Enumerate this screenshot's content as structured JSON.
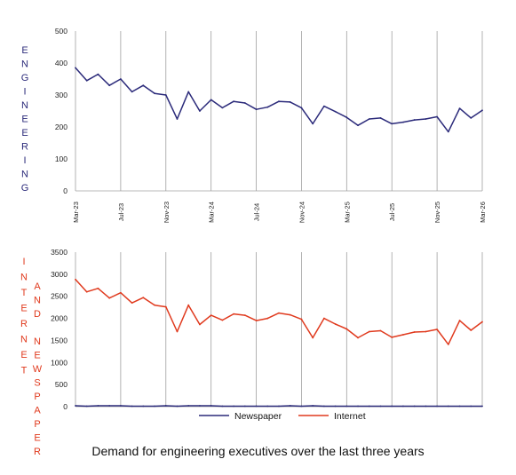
{
  "caption": "Demand for engineering executives over the last three years",
  "colors": {
    "newspaper": "#2b2a7a",
    "internet": "#e03a1e",
    "grid": "#a0a0a0",
    "axis_text": "#222222"
  },
  "chart_data": [
    {
      "type": "line",
      "ylabel": "ENGINEERING",
      "ylabel_color": "#2b2a7a",
      "ylim": [
        0,
        500
      ],
      "yticks": [
        0,
        100,
        200,
        300,
        400,
        500
      ],
      "grid": "vertical lines at every 4th month",
      "x": [
        "Mar-23",
        "Apr-23",
        "May-23",
        "Jun-23",
        "Jul-23",
        "Aug-23",
        "Sep-23",
        "Oct-23",
        "Nov-23",
        "Dec-23",
        "Jan-24",
        "Feb-24",
        "Mar-24",
        "Apr-24",
        "May-24",
        "Jun-24",
        "Jul-24",
        "Aug-24",
        "Sep-24",
        "Oct-24",
        "Nov-24",
        "Dec-24",
        "Jan-25",
        "Feb-25",
        "Mar-25",
        "Apr-25",
        "May-25",
        "Jun-25",
        "Jul-25",
        "Aug-25",
        "Sep-25",
        "Oct-25",
        "Nov-25",
        "Dec-25",
        "Jan-26",
        "Feb-26",
        "Mar-26"
      ],
      "x_tick_labels": [
        "Mar-23",
        "Jul-23",
        "Nov-23",
        "Mar-24",
        "Jul-24",
        "Nov-24",
        "Mar-25",
        "Jul-25",
        "Nov-25",
        "Mar-26"
      ],
      "series": [
        {
          "values": [
            385,
            345,
            365,
            330,
            350,
            310,
            330,
            305,
            300,
            225,
            310,
            250,
            285,
            260,
            280,
            275,
            255,
            262,
            280,
            278,
            260,
            210,
            265,
            248,
            230,
            205,
            225,
            228,
            210,
            215,
            222,
            225,
            232,
            185,
            258,
            228,
            252
          ]
        }
      ]
    },
    {
      "type": "line",
      "ylabel_left": "INTERNET",
      "ylabel_right": "AND NEWSPAPER",
      "ylabel_color": "#e03a1e",
      "ylim": [
        0,
        3500
      ],
      "yticks": [
        0,
        500,
        1000,
        1500,
        2000,
        2500,
        3000,
        3500
      ],
      "grid": "vertical lines at every 4th month",
      "legend": "bottom",
      "x": [
        "Mar-23",
        "Apr-23",
        "May-23",
        "Jun-23",
        "Jul-23",
        "Aug-23",
        "Sep-23",
        "Oct-23",
        "Nov-23",
        "Dec-23",
        "Jan-24",
        "Feb-24",
        "Mar-24",
        "Apr-24",
        "May-24",
        "Jun-24",
        "Jul-24",
        "Aug-24",
        "Sep-24",
        "Oct-24",
        "Nov-24",
        "Dec-24",
        "Jan-25",
        "Feb-25",
        "Mar-25",
        "Apr-25",
        "May-25",
        "Jun-25",
        "Jul-25",
        "Aug-25",
        "Sep-25",
        "Oct-25",
        "Nov-25",
        "Dec-25",
        "Jan-26",
        "Feb-26",
        "Mar-26"
      ],
      "series": [
        {
          "name": "Newspaper",
          "color": "#2b2a7a",
          "values": [
            20,
            10,
            20,
            20,
            20,
            10,
            10,
            10,
            20,
            10,
            20,
            20,
            20,
            10,
            10,
            10,
            10,
            10,
            10,
            20,
            10,
            20,
            10,
            10,
            10,
            10,
            10,
            10,
            10,
            10,
            10,
            10,
            10,
            10,
            10,
            10,
            10
          ]
        },
        {
          "name": "Internet",
          "color": "#e03a1e",
          "values": [
            2880,
            2600,
            2680,
            2460,
            2580,
            2350,
            2470,
            2300,
            2260,
            1700,
            2300,
            1860,
            2070,
            1960,
            2100,
            2070,
            1950,
            2000,
            2120,
            2080,
            1980,
            1560,
            2000,
            1870,
            1760,
            1560,
            1700,
            1720,
            1570,
            1630,
            1690,
            1700,
            1750,
            1410,
            1950,
            1730,
            1920
          ]
        }
      ]
    }
  ]
}
